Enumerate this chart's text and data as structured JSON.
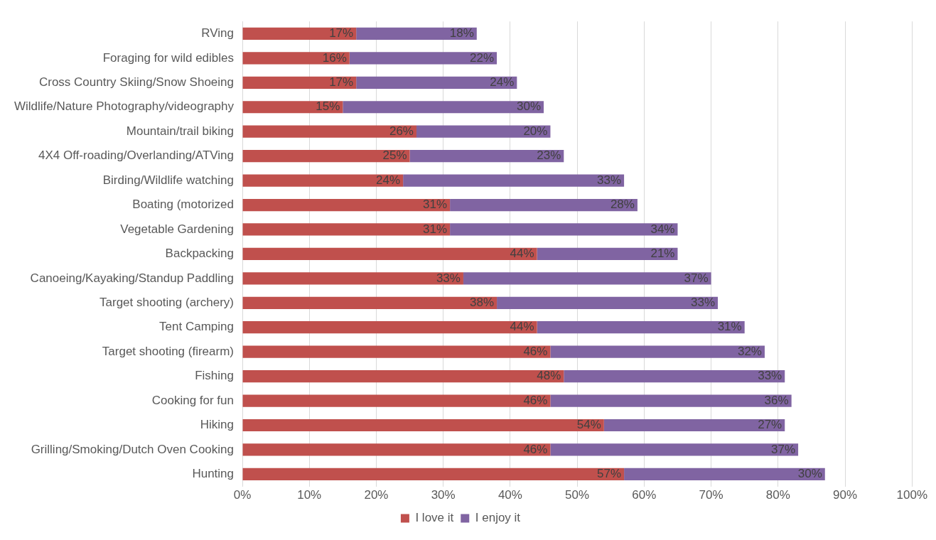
{
  "chart_data": {
    "type": "bar",
    "orientation": "horizontal",
    "stacked": true,
    "categories": [
      "RVing",
      "Foraging for wild edibles",
      "Cross Country Skiing/Snow Shoeing",
      "Wildlife/Nature Photography/videography",
      "Mountain/trail biking",
      "4X4 Off-roading/Overlanding/ATVing",
      "Birding/Wildlife watching",
      "Boating (motorized",
      "Vegetable Gardening",
      "Backpacking",
      "Canoeing/Kayaking/Standup Paddling",
      "Target shooting (archery)",
      "Tent Camping",
      "Target shooting (firearm)",
      "Fishing",
      "Cooking for fun",
      "Hiking",
      "Grilling/Smoking/Dutch Oven Cooking",
      "Hunting"
    ],
    "series": [
      {
        "name": "I love it",
        "color": "#c0504d",
        "values": [
          17,
          16,
          17,
          15,
          26,
          25,
          24,
          31,
          31,
          44,
          33,
          38,
          44,
          46,
          48,
          46,
          54,
          46,
          57
        ],
        "value_labels": [
          "17%",
          "16%",
          "17%",
          "15%",
          "26%",
          "25%",
          "24%",
          "31%",
          "31%",
          "44%",
          "33%",
          "38%",
          "44%",
          "46%",
          "48%",
          "46%",
          "54%",
          "46%",
          "57%"
        ]
      },
      {
        "name": "I enjoy it",
        "color": "#8064a2",
        "values": [
          18,
          22,
          24,
          30,
          20,
          23,
          33,
          28,
          34,
          21,
          37,
          33,
          31,
          32,
          33,
          36,
          27,
          37,
          30
        ],
        "value_labels": [
          "18%",
          "22%",
          "24%",
          "30%",
          "20%",
          "23%",
          "33%",
          "28%",
          "34%",
          "21%",
          "37%",
          "33%",
          "31%",
          "32%",
          "33%",
          "36%",
          "27%",
          "37%",
          "30%"
        ]
      }
    ],
    "xlim": [
      0,
      100
    ],
    "xticks": [
      {
        "value": 0,
        "label": "0%"
      },
      {
        "value": 10,
        "label": "10%"
      },
      {
        "value": 20,
        "label": "20%"
      },
      {
        "value": 30,
        "label": "30%"
      },
      {
        "value": 40,
        "label": "40%"
      },
      {
        "value": 50,
        "label": "50%"
      },
      {
        "value": 60,
        "label": "60%"
      },
      {
        "value": 70,
        "label": "70%"
      },
      {
        "value": 80,
        "label": "80%"
      },
      {
        "value": 90,
        "label": "90%"
      },
      {
        "value": 100,
        "label": "100%"
      }
    ],
    "grid": "x",
    "legend": "bottom"
  }
}
